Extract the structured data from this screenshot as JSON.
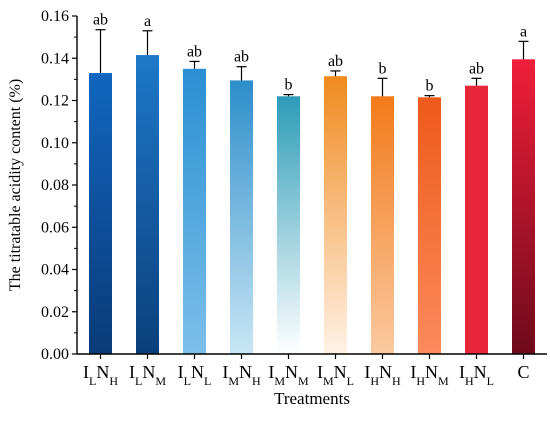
{
  "chart_data": {
    "type": "bar",
    "title": "",
    "xlabel": "Treatments",
    "ylabel": "The titratable acidity content (%)",
    "ylim": [
      0,
      0.16
    ],
    "yticks": [
      "0.00",
      "0.02",
      "0.04",
      "0.06",
      "0.08",
      "0.10",
      "0.12",
      "0.14",
      "0.16"
    ],
    "grid": false,
    "legend": "none",
    "categories": [
      {
        "label": "I",
        "parts": [
          [
            "I",
            ""
          ],
          [
            "L",
            "sub"
          ],
          [
            "N",
            ""
          ],
          [
            "H",
            "sub"
          ]
        ]
      },
      {
        "label": "I",
        "parts": [
          [
            "I",
            ""
          ],
          [
            "L",
            "sub"
          ],
          [
            "N",
            ""
          ],
          [
            "M",
            "sub"
          ]
        ]
      },
      {
        "label": "I",
        "parts": [
          [
            "I",
            ""
          ],
          [
            "L",
            "sub"
          ],
          [
            "N",
            ""
          ],
          [
            "L",
            "sub"
          ]
        ]
      },
      {
        "label": "I",
        "parts": [
          [
            "I",
            ""
          ],
          [
            "M",
            "sub"
          ],
          [
            "N",
            ""
          ],
          [
            "H",
            "sub"
          ]
        ]
      },
      {
        "label": "I",
        "parts": [
          [
            "I",
            ""
          ],
          [
            "M",
            "sub"
          ],
          [
            "N",
            ""
          ],
          [
            "M",
            "sub"
          ]
        ]
      },
      {
        "label": "I",
        "parts": [
          [
            "I",
            ""
          ],
          [
            "M",
            "sub"
          ],
          [
            "N",
            ""
          ],
          [
            "L",
            "sub"
          ]
        ]
      },
      {
        "label": "I",
        "parts": [
          [
            "I",
            ""
          ],
          [
            "H",
            "sub"
          ],
          [
            "N",
            ""
          ],
          [
            "H",
            "sub"
          ]
        ]
      },
      {
        "label": "I",
        "parts": [
          [
            "I",
            ""
          ],
          [
            "H",
            "sub"
          ],
          [
            "N",
            ""
          ],
          [
            "M",
            "sub"
          ]
        ]
      },
      {
        "label": "I",
        "parts": [
          [
            "I",
            ""
          ],
          [
            "H",
            "sub"
          ],
          [
            "N",
            ""
          ],
          [
            "L",
            "sub"
          ]
        ]
      },
      {
        "label": "C",
        "parts": [
          [
            "C",
            ""
          ]
        ]
      }
    ],
    "values": [
      0.133,
      0.1415,
      0.135,
      0.1295,
      0.122,
      0.1315,
      0.122,
      0.1215,
      0.127,
      0.1395
    ],
    "errors": [
      0.0205,
      0.0115,
      0.0035,
      0.0065,
      0.0008,
      0.0025,
      0.0085,
      0.0008,
      0.0035,
      0.0085
    ],
    "significance": [
      "ab",
      "a",
      "ab",
      "ab",
      "b",
      "ab",
      "b",
      "b",
      "ab",
      "a"
    ],
    "bar_gradients": [
      [
        "#1166c0",
        "#0a3a78"
      ],
      [
        "#1e78c9",
        "#0b3f7c"
      ],
      [
        "#2a8fd2",
        "#7cc0ea"
      ],
      [
        "#2d8ecb",
        "#c9e6f5"
      ],
      [
        "#2d9cb8",
        "#ffffff"
      ],
      [
        "#f08a1e",
        "#fff2e6"
      ],
      [
        "#f27a1a",
        "#fbc9a0"
      ],
      [
        "#ee5a1a",
        "#fb8a5c"
      ],
      [
        "#e8283a",
        "#e8283a"
      ],
      [
        "#f01e3a",
        "#6e0a1a"
      ]
    ]
  }
}
